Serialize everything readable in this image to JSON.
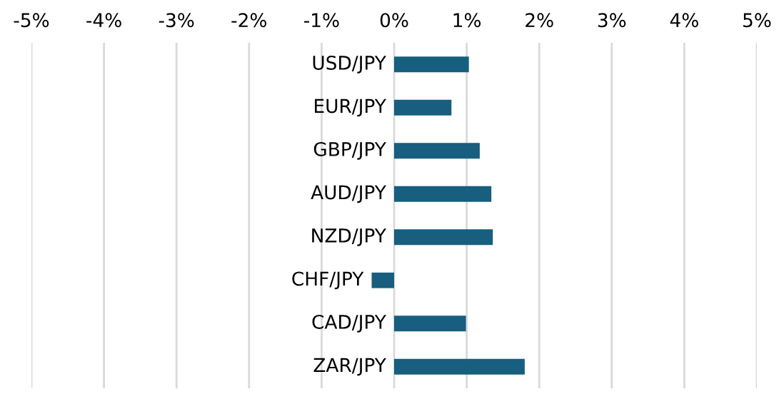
{
  "chart_data": {
    "type": "bar",
    "orientation": "horizontal",
    "categories": [
      "USD/JPY",
      "EUR/JPY",
      "GBP/JPY",
      "AUD/JPY",
      "NZD/JPY",
      "CHF/JPY",
      "CAD/JPY",
      "ZAR/JPY"
    ],
    "values": [
      1.03,
      0.79,
      1.18,
      1.34,
      1.36,
      -0.31,
      0.99,
      1.8
    ],
    "color": "#175e7f",
    "xlim": [
      -5,
      5
    ],
    "xticks": [
      {
        "value": -5,
        "label": "-5%"
      },
      {
        "value": -4,
        "label": "-4%"
      },
      {
        "value": -3,
        "label": "-3%"
      },
      {
        "value": -2,
        "label": "-2%"
      },
      {
        "value": -1,
        "label": "-1%"
      },
      {
        "value": 0,
        "label": "0%"
      },
      {
        "value": 1,
        "label": "1%"
      },
      {
        "value": 2,
        "label": "2%"
      },
      {
        "value": 3,
        "label": "3%"
      },
      {
        "value": 4,
        "label": "4%"
      },
      {
        "value": 5,
        "label": "5%"
      }
    ],
    "grid": "x"
  }
}
